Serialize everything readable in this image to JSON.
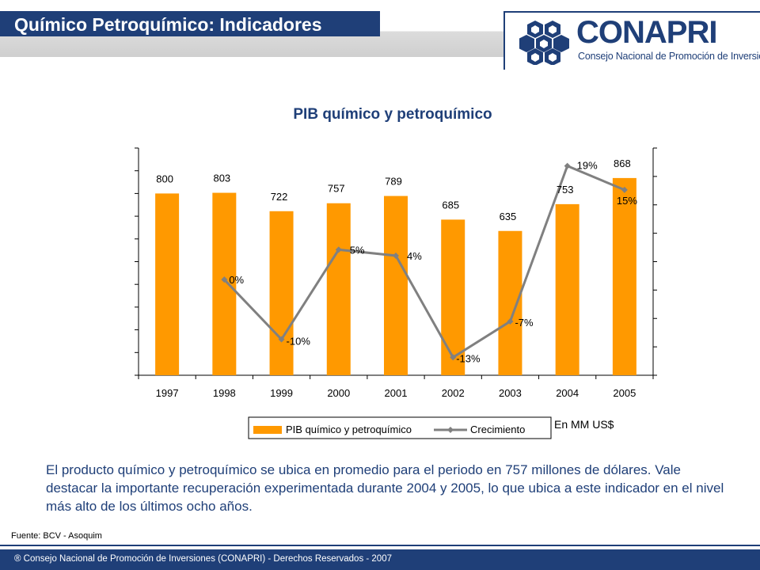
{
  "header": {
    "title": "Químico Petroquímico: Indicadores",
    "logo_name": "CONAPRI",
    "logo_subtitle": "Consejo Nacional de Promoción de Inversiones"
  },
  "colors": {
    "navy": "#1f3f78",
    "bar": "#ff9900",
    "line": "#808080"
  },
  "chart_data": {
    "type": "bar",
    "title": "PIB químico y petroquímico",
    "categories": [
      "1997",
      "1998",
      "1999",
      "2000",
      "2001",
      "2002",
      "2003",
      "2004",
      "2005"
    ],
    "series": [
      {
        "name": "PIB químico y petroquímico",
        "type": "bar",
        "axis": "left",
        "values": [
          800,
          803,
          722,
          757,
          789,
          685,
          635,
          753,
          868
        ],
        "labels": [
          "800",
          "803",
          "722",
          "757",
          "789",
          "685",
          "635",
          "753",
          "868"
        ]
      },
      {
        "name": "Crecimiento",
        "type": "line",
        "axis": "right",
        "values": [
          null,
          0,
          -10,
          5,
          4,
          -13,
          -7,
          19,
          15
        ],
        "labels": [
          "",
          "0%",
          "-10%",
          "5%",
          "4%",
          "-13%",
          "-7%",
          "19%",
          "15%"
        ]
      }
    ],
    "ylim_left": [
      0,
      1000
    ],
    "ylim_right": [
      -16,
      22
    ],
    "legend_position": "bottom",
    "grid": false
  },
  "units_note": "En MM US$",
  "description": "El producto químico y petroquímico se ubica en promedio para el periodo en 757 millones de dólares. Vale destacar la importante recuperación experimentada durante 2004 y 2005, lo que ubica a este indicador en el nivel más alto de los últimos ocho años.",
  "source": "Fuente: BCV - Asoquim",
  "footer": "® Consejo Nacional de Promoción de Inversiones (CONAPRI)  - Derechos Reservados - 2007"
}
